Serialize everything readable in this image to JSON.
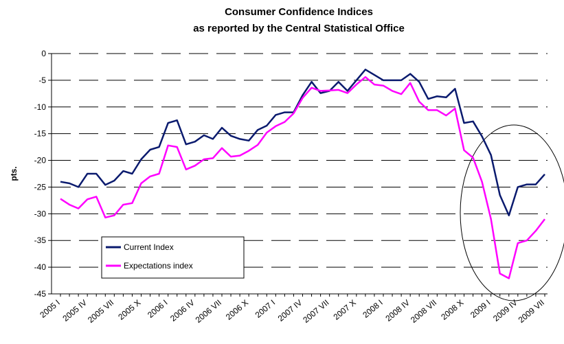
{
  "chart_data": {
    "type": "line",
    "title": "Consumer Confidence Indices",
    "subtitle": "as reported by the Central Statistical Office",
    "y_label": "pts.",
    "categories": [
      "2005 I",
      null,
      null,
      "2005 IV",
      null,
      null,
      "2005 VII",
      null,
      null,
      "2005 X",
      null,
      null,
      "2006 I",
      null,
      null,
      "2006 IV",
      null,
      null,
      "2006 VII",
      null,
      null,
      "2006 X",
      null,
      null,
      "2007 I",
      null,
      null,
      "2007 IV",
      null,
      null,
      "2007 VII",
      null,
      null,
      "2007 X",
      null,
      null,
      "2008 I",
      null,
      null,
      "2008 IV",
      null,
      null,
      "2008 VII",
      null,
      null,
      "2008 X",
      null,
      null,
      "2009 I",
      null,
      null,
      "2009 IV",
      null,
      null,
      "2009 VII"
    ],
    "series": [
      {
        "name": "Current Index",
        "color": "#0a1a6e",
        "values": [
          -24,
          -24.3,
          -25,
          -22.5,
          -22.5,
          -24.6,
          -23.8,
          -22,
          -22.5,
          -19.8,
          -18,
          -17.5,
          -13,
          -12.5,
          -17,
          -16.5,
          -15.3,
          -16,
          -13.9,
          -15.4,
          -16,
          -16.3,
          -14.3,
          -13.5,
          -11.5,
          -11,
          -11,
          -7.8,
          -5.3,
          -7.4,
          -7,
          -5.3,
          -7,
          -5,
          -3,
          -4,
          -5,
          -5,
          -5,
          -3.8,
          -5.3,
          -8.5,
          -8,
          -8.2,
          -6.6,
          -13,
          -12.7,
          -15.5,
          -19,
          -26.5,
          -30.3,
          -25,
          -24.5,
          -24.5,
          -22.6
        ]
      },
      {
        "name": "Expectations index",
        "color": "#ff00ff",
        "values": [
          -27.2,
          -28.3,
          -29,
          -27.3,
          -26.8,
          -30.7,
          -30.3,
          -28.3,
          -28,
          -24.3,
          -23,
          -22.5,
          -17.2,
          -17.5,
          -21.7,
          -21,
          -19.8,
          -19.6,
          -17.7,
          -19.3,
          -19.1,
          -18.2,
          -17.1,
          -14.8,
          -13.6,
          -12.8,
          -11.2,
          -8.3,
          -6.4,
          -7,
          -6.9,
          -6.8,
          -7.4,
          -5.8,
          -4.4,
          -5.8,
          -6,
          -7,
          -7.6,
          -5.5,
          -9,
          -10.6,
          -10.6,
          -11.6,
          -10.3,
          -18.1,
          -19.5,
          -24,
          -31,
          -41.2,
          -42.1,
          -35.5,
          -35,
          -33.2,
          -31
        ]
      }
    ],
    "ylim": [
      -45,
      0
    ],
    "yticks": [
      0,
      -5,
      -10,
      -15,
      -20,
      -25,
      -30,
      -35,
      -40,
      -45
    ],
    "grid": true,
    "legend": "lower left"
  }
}
